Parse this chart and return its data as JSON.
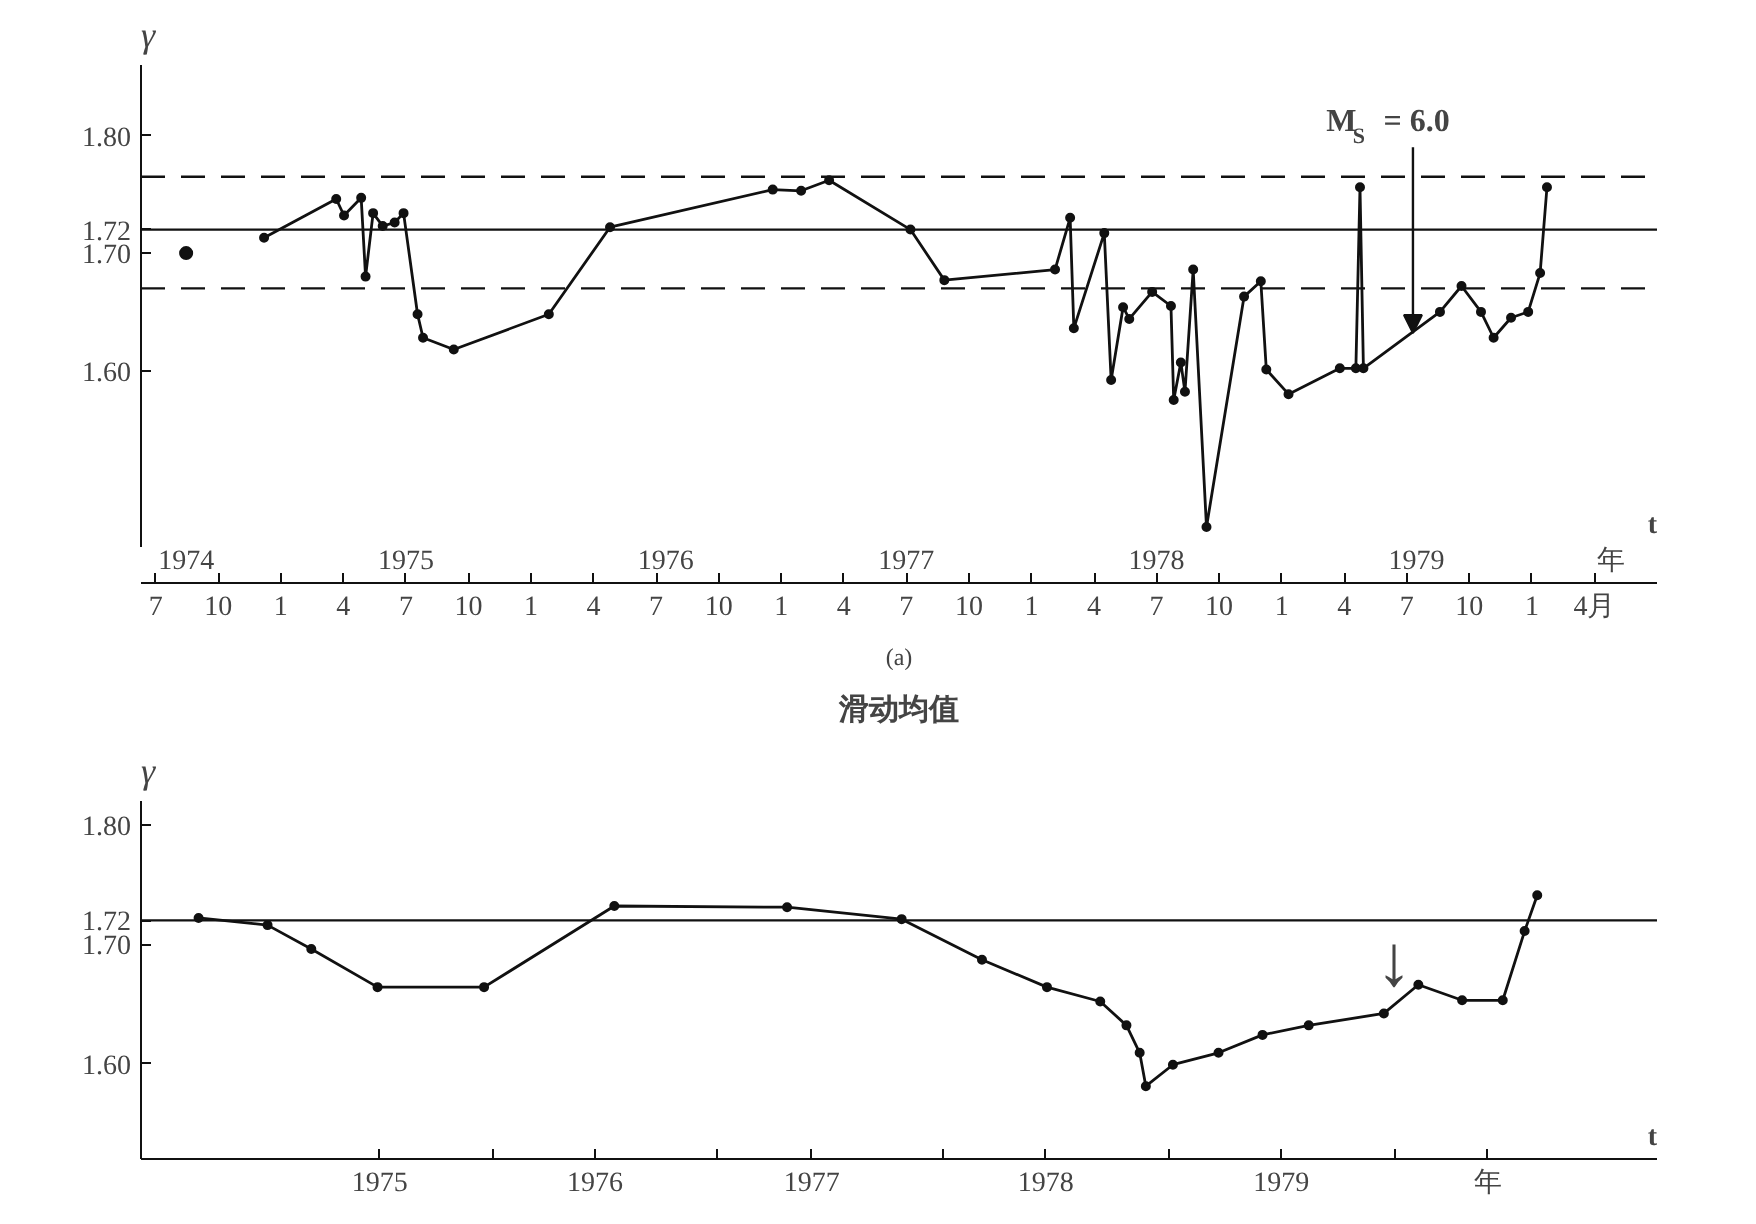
{
  "chart_data": [
    {
      "type": "line",
      "xlabel": "t",
      "ylabel": "γ",
      "x": [
        "1974-12-07",
        "1975-03-21",
        "1975-04-02",
        "1975-04-27",
        "1975-05-03",
        "1975-05-14",
        "1975-05-28",
        "1975-06-15",
        "1975-06-28",
        "1975-07-18",
        "1975-07-26",
        "1975-09-10",
        "1976-01-27",
        "1976-04-25",
        "1976-12-19",
        "1977-01-30",
        "1977-03-10",
        "1977-07-07",
        "1977-08-26",
        "1978-02-05",
        "1978-02-27",
        "1978-03-02",
        "1978-04-16",
        "1978-04-26",
        "1978-05-13",
        "1978-05-22",
        "1978-06-25",
        "1978-07-22",
        "1978-07-26",
        "1978-08-06",
        "1978-08-12",
        "1978-08-24",
        "1978-09-13",
        "1978-11-07",
        "1978-12-01",
        "1978-12-09",
        "1979-01-11",
        "1979-03-25",
        "1979-04-18",
        "1979-04-24",
        "1979-04-29",
        "1979-08-19",
        "1979-09-20",
        "1979-10-18",
        "1979-11-06",
        "1979-12-01",
        "1979-12-26",
        "1980-01-13",
        "1980-01-23"
      ],
      "series": [
        {
          "type": "scatter",
          "color": "#111111",
          "x": [
            "1974-08-15"
          ],
          "values": [
            1.7
          ]
        },
        {
          "color": "#111111",
          "values": [
            1.713,
            1.746,
            1.732,
            1.747,
            1.68,
            1.734,
            1.723,
            1.726,
            1.734,
            1.648,
            1.628,
            1.618,
            1.648,
            1.722,
            1.754,
            1.753,
            1.762,
            1.72,
            1.677,
            1.686,
            1.73,
            1.636,
            1.717,
            1.592,
            1.654,
            1.644,
            1.667,
            1.655,
            1.575,
            1.607,
            1.582,
            1.686,
            1.467,
            1.663,
            1.676,
            1.601,
            1.58,
            1.602,
            1.602,
            1.756,
            1.602,
            1.65,
            1.672,
            1.65,
            1.628,
            1.645,
            1.65,
            1.683,
            1.756
          ]
        }
      ],
      "xlim": [
        "1974-06-10",
        "1980-07-01"
      ],
      "ylim": [
        1.45,
        1.86
      ],
      "xticks": [
        {
          "value": "1974-07",
          "label": "7"
        },
        {
          "value": "1974-10",
          "label": "10"
        },
        {
          "value": "1975-01",
          "label": "1"
        },
        {
          "value": "1975-04",
          "label": "4"
        },
        {
          "value": "1975-07",
          "label": "7"
        },
        {
          "value": "1975-10",
          "label": "10"
        },
        {
          "value": "1976-01",
          "label": "1"
        },
        {
          "value": "1976-04",
          "label": "4"
        },
        {
          "value": "1976-07",
          "label": "7"
        },
        {
          "value": "1976-10",
          "label": "10"
        },
        {
          "value": "1977-01",
          "label": "1"
        },
        {
          "value": "1977-04",
          "label": "4"
        },
        {
          "value": "1977-07",
          "label": "7"
        },
        {
          "value": "1977-10",
          "label": "10"
        },
        {
          "value": "1978-01",
          "label": "1"
        },
        {
          "value": "1978-04",
          "label": "4"
        },
        {
          "value": "1978-07",
          "label": "7"
        },
        {
          "value": "1978-10",
          "label": "10"
        },
        {
          "value": "1979-01",
          "label": "1"
        },
        {
          "value": "1979-04",
          "label": "4"
        },
        {
          "value": "1979-07",
          "label": "7"
        },
        {
          "value": "1979-10",
          "label": "10"
        },
        {
          "value": "1980-01",
          "label": "1"
        },
        {
          "value": "1980-04",
          "label": "4月"
        }
      ],
      "x2lim": [
        "1974-06-10",
        "1980-07-01"
      ],
      "x2ticks": [
        {
          "value": "1974-08-15",
          "label": "1974"
        },
        {
          "value": "1975-07-01",
          "label": "1975"
        },
        {
          "value": "1976-07-15",
          "label": "1976"
        },
        {
          "value": "1977-07-01",
          "label": "1977"
        },
        {
          "value": "1978-07-01",
          "label": "1978"
        },
        {
          "value": "1979-07-15",
          "label": "1979"
        },
        {
          "value": "1980-04-25",
          "label": "年"
        }
      ],
      "yticks": [
        {
          "value": 1.6,
          "label": "1.60"
        },
        {
          "value": 1.7,
          "label": "1.70"
        },
        {
          "value": 1.72,
          "label": "1.72"
        },
        {
          "value": 1.8,
          "label": "1.80"
        }
      ],
      "ref_lines": [
        {
          "axis": "y",
          "value": 1.72,
          "color": "#111111",
          "line_style": "solid"
        },
        {
          "axis": "y",
          "value": 1.765,
          "color": "#111111",
          "line_style": "dashed"
        },
        {
          "axis": "y",
          "value": 1.67,
          "color": "#111111",
          "line_style": "dashed"
        }
      ],
      "annotations": [
        {
          "text": "M$_{S}$ = 6.0",
          "x": "1979-07-10",
          "y": 1.632
        },
        "(a)"
      ],
      "marker": "circle",
      "line_style": "solid"
    },
    {
      "type": "line",
      "title": "滑动均值",
      "xlabel": "t",
      "ylabel": "γ",
      "x": [
        "1974-09-12",
        "1975-01-02",
        "1975-03-12",
        "1975-06-28",
        "1975-12-18",
        "1976-07-16",
        "1977-04-22",
        "1977-10-25",
        "1978-03-03",
        "1978-06-17",
        "1978-09-12",
        "1978-10-24",
        "1978-11-15",
        "1978-11-25",
        "1979-01-08",
        "1979-03-21",
        "1979-06-01",
        "1979-08-15",
        "1979-12-15",
        "1980-02-10",
        "1980-04-20",
        "1980-06-25",
        "1980-07-30",
        "1980-08-20"
      ],
      "series": [
        {
          "color": "#111111",
          "values": [
            1.722,
            1.716,
            1.696,
            1.664,
            1.664,
            1.732,
            1.731,
            1.721,
            1.687,
            1.664,
            1.652,
            1.632,
            1.609,
            1.581,
            1.599,
            1.609,
            1.624,
            1.632,
            1.642,
            1.666,
            1.653,
            1.653,
            1.711,
            1.741
          ]
        }
      ],
      "xlim": [
        "1974-06-10",
        "1981-03-01"
      ],
      "ylim": [
        1.52,
        1.82
      ],
      "xticks": [
        {
          "value": "1975-07-01",
          "label": "1975"
        },
        {
          "value": "1976-01",
          "label": null
        },
        {
          "value": "1976-06-15",
          "label": "1976"
        },
        {
          "value": "1977-01",
          "label": null
        },
        {
          "value": "1977-06-01",
          "label": "1977"
        },
        {
          "value": "1978-01",
          "label": null
        },
        {
          "value": "1978-06-15",
          "label": "1978"
        },
        {
          "value": "1979-01",
          "label": null
        },
        {
          "value": "1979-07-01",
          "label": "1979"
        },
        {
          "value": "1980-01",
          "label": null
        },
        {
          "value": "1980-06-01",
          "label": "年"
        }
      ],
      "yticks": [
        {
          "value": 1.6,
          "label": "1.60"
        },
        {
          "value": 1.7,
          "label": "1.70"
        },
        {
          "value": 1.72,
          "label": "1.72"
        },
        {
          "value": 1.8,
          "label": "1.80"
        }
      ],
      "ref_lines": [
        {
          "axis": "y",
          "value": 1.72,
          "color": "#111111",
          "line_style": "solid"
        }
      ],
      "annotations": [
        {
          "text": "↓",
          "x": "1980-01-01",
          "y": 1.649
        }
      ],
      "marker": "circle",
      "line_style": "solid"
    }
  ]
}
